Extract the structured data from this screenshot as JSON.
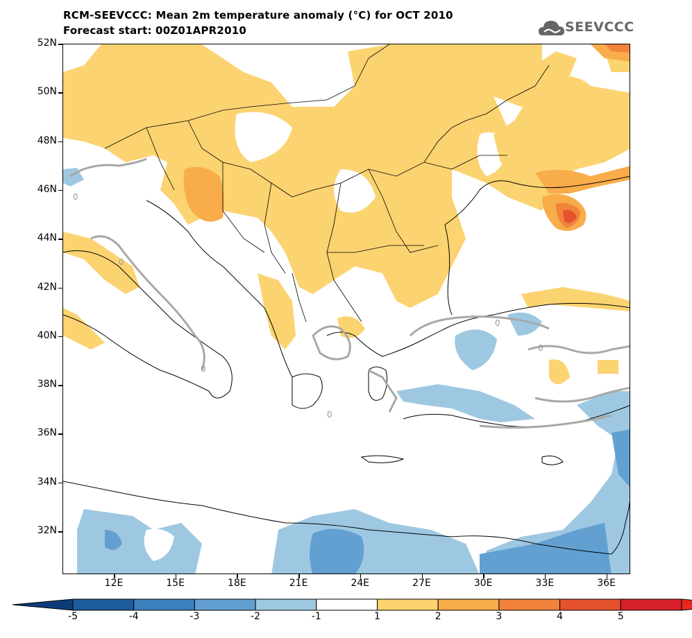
{
  "header": {
    "title_line1": "RCM-SEEVCCC: Mean 2m temperature anomaly (°C) for OCT 2010",
    "title_line2": "Forecast start: 00Z01APR2010",
    "logo_text": "SEEVCCC"
  },
  "map": {
    "lat_labels": [
      "52N",
      "50N",
      "48N",
      "46N",
      "44N",
      "42N",
      "40N",
      "38N",
      "36N",
      "34N",
      "32N"
    ],
    "lon_labels": [
      "12E",
      "15E",
      "18E",
      "21E",
      "24E",
      "27E",
      "30E",
      "33E",
      "36E"
    ],
    "contour_label": "0"
  },
  "colorbar": {
    "levels": [
      "-5",
      "-4",
      "-3",
      "-2",
      "-1",
      "1",
      "2",
      "3",
      "4",
      "5"
    ],
    "colors": [
      "#1d5c9c",
      "#3b7fbd",
      "#62a0d1",
      "#9ec8e2",
      "#ffffff",
      "#fbd370",
      "#f8ac4a",
      "#f2833c",
      "#e5522e",
      "#d7202a"
    ],
    "min_arrow_color": "#0d3b78",
    "max_arrow_color": "#e8281f"
  }
}
